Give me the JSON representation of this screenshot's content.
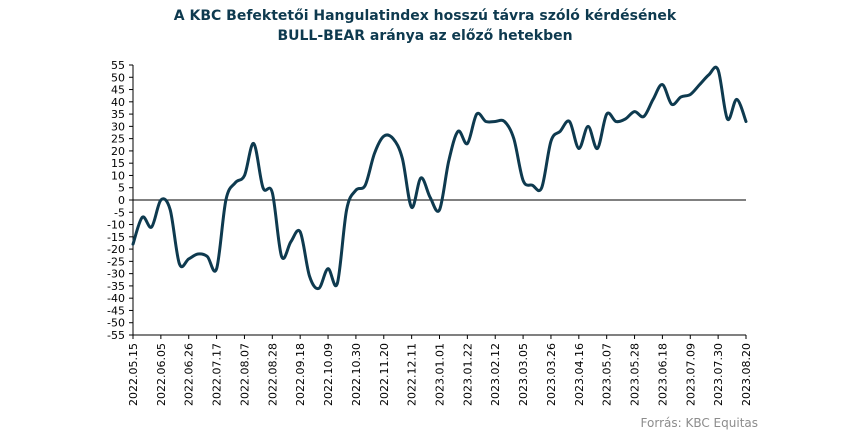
{
  "chart_data": {
    "type": "line",
    "title_lines": [
      "A KBC Befektetői Hangulatindex  hosszú távra szóló kérdésének",
      "BULL-BEAR aránya az előző hetekben"
    ],
    "xlabel": "",
    "ylabel": "",
    "ylim": [
      -55,
      55
    ],
    "y_ticks": [
      55,
      50,
      45,
      40,
      35,
      30,
      25,
      20,
      15,
      10,
      5,
      0,
      -5,
      -10,
      -15,
      -20,
      -25,
      -30,
      -35,
      -40,
      -45,
      -50,
      -55
    ],
    "x_tick_labels": [
      "2022.05.15",
      "2022.06.05",
      "2022.06.26",
      "2022.07.17",
      "2022.08.07",
      "2022.08.28",
      "2022.09.18",
      "2022.10.09",
      "2022.10.30",
      "2022.11.20",
      "2022.12.11",
      "2023.01.01",
      "2023.01.22",
      "2023.02.12",
      "2023.03.05",
      "2023.03.26",
      "2023.04.16",
      "2023.05.07",
      "2023.05.28",
      "2023.06.18",
      "2023.07.09",
      "2023.07.30",
      "2023.08.20"
    ],
    "grid": false,
    "legend": "none",
    "line_color": "#0e3a4f",
    "series": [
      {
        "x": [
          "2022.05.15",
          "2022.05.22",
          "2022.05.29",
          "2022.06.05",
          "2022.06.12",
          "2022.06.19",
          "2022.06.26",
          "2022.07.03",
          "2022.07.10",
          "2022.07.17",
          "2022.07.24",
          "2022.07.31",
          "2022.08.07",
          "2022.08.14",
          "2022.08.21",
          "2022.08.28",
          "2022.09.04",
          "2022.09.11",
          "2022.09.18",
          "2022.09.25",
          "2022.10.02",
          "2022.10.09",
          "2022.10.16",
          "2022.10.23",
          "2022.10.30",
          "2022.11.06",
          "2022.11.13",
          "2022.11.20",
          "2022.11.27",
          "2022.12.04",
          "2022.12.11",
          "2022.12.18",
          "2022.12.25",
          "2023.01.01",
          "2023.01.08",
          "2023.01.15",
          "2023.01.22",
          "2023.01.29",
          "2023.02.05",
          "2023.02.12",
          "2023.02.19",
          "2023.02.26",
          "2023.03.05",
          "2023.03.12",
          "2023.03.19",
          "2023.03.26",
          "2023.04.02",
          "2023.04.09",
          "2023.04.16",
          "2023.04.23",
          "2023.04.30",
          "2023.05.07",
          "2023.05.14",
          "2023.05.21",
          "2023.05.28",
          "2023.06.04",
          "2023.06.11",
          "2023.06.18",
          "2023.06.25",
          "2023.07.02",
          "2023.07.09",
          "2023.07.16",
          "2023.07.23",
          "2023.07.30",
          "2023.08.06",
          "2023.08.13",
          "2023.08.20"
        ],
        "values": [
          -18,
          -7,
          -11,
          0,
          -4,
          -26,
          -24,
          -22,
          -23,
          -28,
          0,
          7,
          10,
          23,
          5,
          3,
          -23,
          -17,
          -13,
          -31,
          -36,
          -28,
          -34,
          -4,
          4,
          6,
          19,
          26,
          25,
          17,
          -3,
          9,
          1,
          -4,
          16,
          28,
          23,
          35,
          32,
          32,
          32,
          25,
          8,
          6,
          5,
          24,
          28,
          32,
          21,
          30,
          21,
          35,
          32,
          33,
          36,
          34,
          41,
          47,
          39,
          42,
          43,
          47,
          51,
          53,
          33,
          41,
          32
        ]
      }
    ],
    "source": "Forrás: KBC Equitas"
  }
}
